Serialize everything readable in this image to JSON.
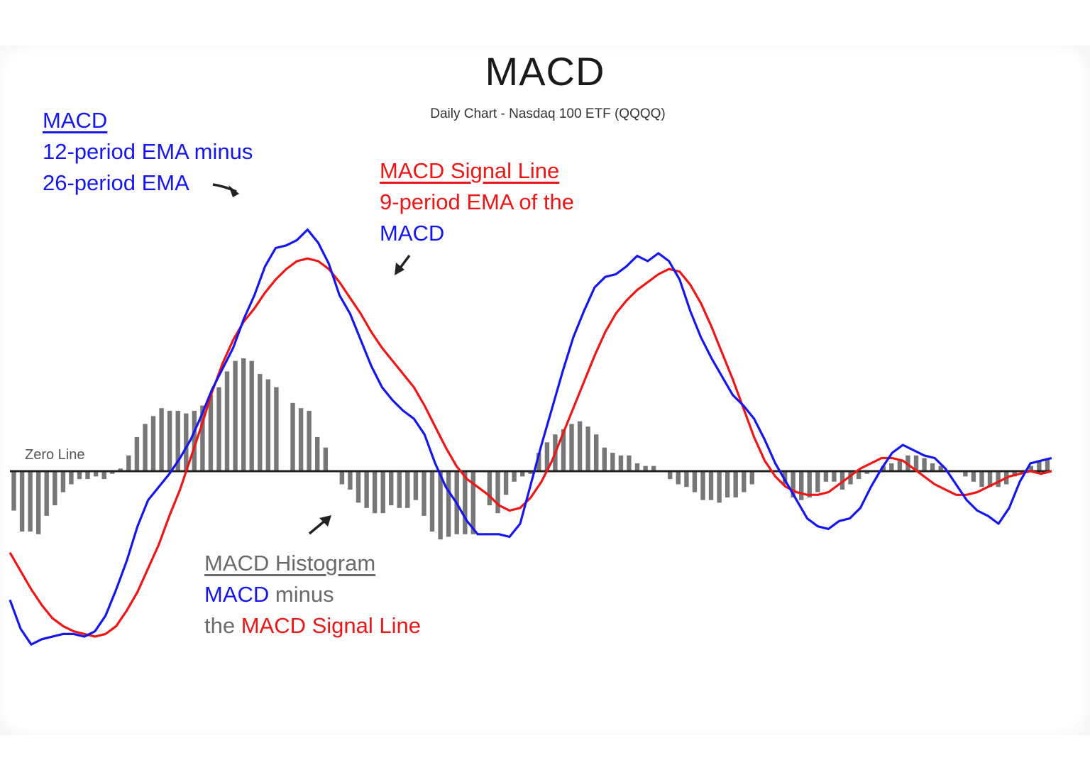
{
  "chart_data": {
    "type": "line",
    "title": "MACD",
    "subtitle": "Daily Chart - Nasdaq 100 ETF (QQQQ)",
    "xlabel": "",
    "ylabel": "",
    "grid": false,
    "legend_position": "inline annotations",
    "zero_line_label": "Zero Line",
    "x_range": [
      0,
      100
    ],
    "y_range": [
      -70,
      90
    ],
    "series": [
      {
        "name": "MACD (12-period EMA minus 26-period EMA)",
        "type": "line",
        "color": "#1515f0",
        "points": [
          [
            0,
            -49
          ],
          [
            1,
            -60
          ],
          [
            2,
            -66
          ],
          [
            3,
            -64
          ],
          [
            4,
            -63
          ],
          [
            5,
            -62
          ],
          [
            6,
            -62
          ],
          [
            7,
            -63
          ],
          [
            8,
            -61
          ],
          [
            9,
            -55
          ],
          [
            10,
            -45
          ],
          [
            11,
            -34
          ],
          [
            12,
            -21
          ],
          [
            13,
            -11
          ],
          [
            14,
            -6
          ],
          [
            15,
            -1
          ],
          [
            16,
            5
          ],
          [
            17,
            12
          ],
          [
            18,
            21
          ],
          [
            19,
            31
          ],
          [
            20,
            39
          ],
          [
            21,
            47
          ],
          [
            22,
            58
          ],
          [
            23,
            67
          ],
          [
            24,
            78
          ],
          [
            25,
            85
          ],
          [
            26,
            86
          ],
          [
            27,
            88
          ],
          [
            28,
            92
          ],
          [
            29,
            87
          ],
          [
            30,
            79
          ],
          [
            31,
            67
          ],
          [
            32,
            60
          ],
          [
            33,
            50
          ],
          [
            34,
            40
          ],
          [
            35,
            32
          ],
          [
            36,
            27
          ],
          [
            37,
            23
          ],
          [
            38,
            20
          ],
          [
            39,
            14
          ],
          [
            40,
            3
          ],
          [
            41,
            -6
          ],
          [
            42,
            -12
          ],
          [
            43,
            -19
          ],
          [
            44,
            -24
          ],
          [
            45,
            -24
          ],
          [
            46,
            -24
          ],
          [
            47,
            -25
          ],
          [
            48,
            -20
          ],
          [
            49,
            -5
          ],
          [
            50,
            10
          ],
          [
            51,
            24
          ],
          [
            52,
            38
          ],
          [
            53,
            51
          ],
          [
            54,
            61
          ],
          [
            55,
            70
          ],
          [
            56,
            74
          ],
          [
            57,
            75
          ],
          [
            58,
            78
          ],
          [
            59,
            82
          ],
          [
            60,
            80
          ],
          [
            61,
            83
          ],
          [
            62,
            80
          ],
          [
            63,
            73
          ],
          [
            64,
            61
          ],
          [
            65,
            51
          ],
          [
            66,
            43
          ],
          [
            67,
            36
          ],
          [
            68,
            29
          ],
          [
            69,
            25
          ],
          [
            70,
            20
          ],
          [
            71,
            12
          ],
          [
            72,
            3
          ],
          [
            73,
            -4
          ],
          [
            74,
            -11
          ],
          [
            75,
            -18
          ],
          [
            76,
            -21
          ],
          [
            77,
            -22
          ],
          [
            78,
            -19
          ],
          [
            79,
            -18
          ],
          [
            80,
            -14
          ],
          [
            81,
            -6
          ],
          [
            82,
            1
          ],
          [
            83,
            7
          ],
          [
            84,
            10
          ],
          [
            85,
            8
          ],
          [
            86,
            6
          ],
          [
            87,
            5
          ],
          [
            88,
            1
          ],
          [
            89,
            -5
          ],
          [
            90,
            -11
          ],
          [
            91,
            -15
          ],
          [
            92,
            -17
          ],
          [
            93,
            -20
          ],
          [
            94,
            -14
          ],
          [
            95,
            -4
          ],
          [
            96,
            3
          ],
          [
            97,
            4
          ],
          [
            98,
            5
          ]
        ]
      },
      {
        "name": "MACD Signal Line (9-period EMA of the MACD)",
        "type": "line",
        "color": "#f01515",
        "points": [
          [
            0,
            -31
          ],
          [
            1,
            -38
          ],
          [
            2,
            -45
          ],
          [
            3,
            -51
          ],
          [
            4,
            -56
          ],
          [
            5,
            -59
          ],
          [
            6,
            -61
          ],
          [
            7,
            -62
          ],
          [
            8,
            -63
          ],
          [
            9,
            -62
          ],
          [
            10,
            -59
          ],
          [
            11,
            -53
          ],
          [
            12,
            -46
          ],
          [
            13,
            -37
          ],
          [
            14,
            -28
          ],
          [
            15,
            -17
          ],
          [
            16,
            -7
          ],
          [
            17,
            5
          ],
          [
            18,
            17
          ],
          [
            19,
            30
          ],
          [
            20,
            41
          ],
          [
            21,
            50
          ],
          [
            22,
            57
          ],
          [
            23,
            62
          ],
          [
            24,
            68
          ],
          [
            25,
            73
          ],
          [
            26,
            77
          ],
          [
            27,
            80
          ],
          [
            28,
            81
          ],
          [
            29,
            80
          ],
          [
            30,
            77
          ],
          [
            31,
            72
          ],
          [
            32,
            66
          ],
          [
            33,
            60
          ],
          [
            34,
            53
          ],
          [
            35,
            47
          ],
          [
            36,
            42
          ],
          [
            37,
            37
          ],
          [
            38,
            32
          ],
          [
            39,
            25
          ],
          [
            40,
            17
          ],
          [
            41,
            9
          ],
          [
            42,
            2
          ],
          [
            43,
            -3
          ],
          [
            44,
            -6
          ],
          [
            45,
            -9
          ],
          [
            46,
            -13
          ],
          [
            47,
            -15
          ],
          [
            48,
            -14
          ],
          [
            49,
            -10
          ],
          [
            50,
            -4
          ],
          [
            51,
            4
          ],
          [
            52,
            14
          ],
          [
            53,
            24
          ],
          [
            54,
            34
          ],
          [
            55,
            44
          ],
          [
            56,
            53
          ],
          [
            57,
            60
          ],
          [
            58,
            65
          ],
          [
            59,
            69
          ],
          [
            60,
            72
          ],
          [
            61,
            75
          ],
          [
            62,
            77
          ],
          [
            63,
            76
          ],
          [
            64,
            71
          ],
          [
            65,
            64
          ],
          [
            66,
            55
          ],
          [
            67,
            45
          ],
          [
            68,
            35
          ],
          [
            69,
            24
          ],
          [
            70,
            13
          ],
          [
            71,
            4
          ],
          [
            72,
            -2
          ],
          [
            73,
            -6
          ],
          [
            74,
            -8
          ],
          [
            75,
            -9
          ],
          [
            76,
            -9
          ],
          [
            77,
            -8
          ],
          [
            78,
            -5
          ],
          [
            79,
            -2
          ],
          [
            80,
            1
          ],
          [
            81,
            3
          ],
          [
            82,
            5
          ],
          [
            83,
            5
          ],
          [
            84,
            4
          ],
          [
            85,
            1
          ],
          [
            86,
            -2
          ],
          [
            87,
            -5
          ],
          [
            88,
            -7
          ],
          [
            89,
            -9
          ],
          [
            90,
            -9
          ],
          [
            91,
            -8
          ],
          [
            92,
            -6
          ],
          [
            93,
            -4
          ],
          [
            94,
            -2
          ],
          [
            95,
            -1
          ],
          [
            96,
            0
          ],
          [
            97,
            -1
          ],
          [
            98,
            0
          ]
        ]
      },
      {
        "name": "MACD Histogram (MACD minus the MACD Signal Line)",
        "type": "bar",
        "color": "#777777",
        "values": [
          -15,
          -23,
          -23,
          -24,
          -17,
          -13,
          -8,
          -5,
          -3,
          -3,
          -2,
          -3,
          -1,
          1,
          6,
          13,
          18,
          21,
          24,
          23,
          23,
          22,
          23,
          25,
          29,
          32,
          38,
          42,
          43,
          42,
          37,
          35,
          32,
          0,
          26,
          24,
          23,
          13,
          9,
          0,
          -5,
          -7,
          -12,
          -14,
          -16,
          -16,
          -13,
          -14,
          -14,
          -11,
          -17,
          -23,
          -26,
          -25,
          -24,
          -24,
          -24,
          0,
          -13,
          -16,
          -9,
          -4,
          -2,
          -1,
          7,
          11,
          14,
          16,
          18,
          19,
          17,
          14,
          9,
          7,
          6,
          6,
          3,
          2,
          2,
          0,
          -3,
          -5,
          -6,
          -8,
          -11,
          -11,
          -12,
          -10,
          -10,
          -8,
          -5,
          0,
          0,
          0,
          -5,
          -10,
          -11,
          -10,
          -8,
          -4,
          -4,
          -7,
          -5,
          -3,
          -1,
          0,
          2,
          3,
          4,
          6,
          6,
          5,
          3,
          2,
          0,
          0,
          -2,
          -4,
          -6,
          -6,
          -6,
          -5,
          -2,
          0,
          2,
          4,
          5
        ]
      }
    ],
    "annotations": [
      {
        "text": "MACD",
        "color": "#1515f0",
        "underlined": true
      },
      {
        "text": "12-period EMA minus",
        "color": "#1515f0"
      },
      {
        "text": "26-period EMA",
        "color": "#1515f0"
      },
      {
        "text": "MACD Signal Line",
        "color": "#f01515",
        "underlined": true
      },
      {
        "text": "9-period EMA of the",
        "color": "#f01515"
      },
      {
        "text": "MACD",
        "color": "#1515f0"
      },
      {
        "text": "MACD Histogram",
        "color": "#6a6a6a",
        "underlined": true
      },
      {
        "text": "MACD minus",
        "color": "#1515f0/#6a6a6a"
      },
      {
        "text": "the MACD Signal Line",
        "color": "#6a6a6a/#f01515"
      }
    ]
  },
  "title": "MACD",
  "subtitle": "Daily Chart - Nasdaq 100 ETF (QQQQ)",
  "zero_line_label": "Zero Line",
  "macd_note": {
    "heading": "MACD",
    "line1": "12-period EMA minus",
    "line2": "26-period EMA"
  },
  "signal_note": {
    "heading": "MACD Signal Line",
    "line1": "9-period EMA of the",
    "line2": "MACD"
  },
  "histogram_note": {
    "heading": "MACD Histogram",
    "line1_a": "MACD",
    "line1_b": " minus",
    "line2_a": "the ",
    "line2_b": "MACD Signal Line"
  },
  "colors": {
    "macd": "#1515f0",
    "signal": "#f01515",
    "histogram": "#777777",
    "zero_line": "#222222"
  }
}
